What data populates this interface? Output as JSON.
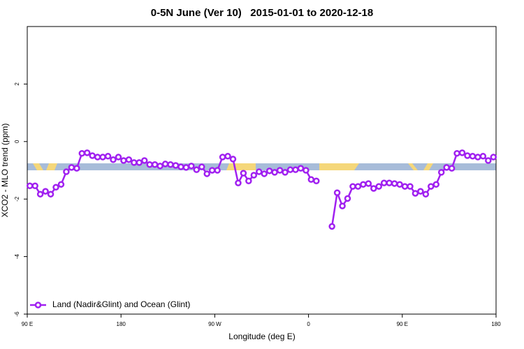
{
  "chart_data": {
    "type": "line",
    "title": "0-5N June (Ver 10)   2015-01-01 to 2020-12-18",
    "x_label": "Longitude (deg E)",
    "y_label": "XCO2 - MLO trend (ppm)",
    "x": [
      92.5,
      97.5,
      102.5,
      107.5,
      112.5,
      117.5,
      122.5,
      127.5,
      132.5,
      137.5,
      142.5,
      147.5,
      152.5,
      157.5,
      162.5,
      167.5,
      172.5,
      177.5,
      182.5,
      187.5,
      192.5,
      197.5,
      202.5,
      207.5,
      212.5,
      217.5,
      222.5,
      227.5,
      232.5,
      237.5,
      242.5,
      247.5,
      252.5,
      257.5,
      262.5,
      267.5,
      272.5,
      277.5,
      282.5,
      287.5,
      292.5,
      297.5,
      302.5,
      307.5,
      312.5,
      317.5,
      322.5,
      327.5,
      332.5,
      337.5,
      342.5,
      347.5,
      352.5,
      357.5,
      362.5,
      367.5,
      372.5,
      377.5,
      382.5,
      387.5,
      392.5,
      397.5,
      402.5,
      407.5,
      412.5,
      417.5,
      422.5,
      427.5,
      432.5,
      437.5,
      442.5,
      447.5,
      452.5,
      457.5,
      462.5,
      467.5,
      472.5,
      477.5,
      482.5,
      487.5,
      492.5,
      497.5,
      502.5,
      507.5,
      512.5,
      517.5,
      522.5,
      527.5,
      532.5,
      537.5
    ],
    "series": [
      {
        "name": "Land (Nadir&Glint) and Ocean (Glint)",
        "color": "#a020f0",
        "values": [
          -1.54,
          -1.54,
          -1.83,
          -1.73,
          -1.83,
          -1.59,
          -1.49,
          -1.05,
          -0.9,
          -0.93,
          -0.41,
          -0.39,
          -0.49,
          -0.54,
          -0.54,
          -0.51,
          -0.63,
          -0.54,
          -0.66,
          -0.63,
          -0.73,
          -0.73,
          -0.66,
          -0.8,
          -0.8,
          -0.85,
          -0.78,
          -0.8,
          -0.83,
          -0.88,
          -0.9,
          -0.85,
          -0.98,
          -0.88,
          -1.12,
          -1.0,
          -1.0,
          -0.54,
          -0.51,
          -0.61,
          -1.44,
          -1.1,
          -1.37,
          -1.17,
          -1.05,
          -1.12,
          -1.02,
          -1.07,
          -1.0,
          -1.07,
          -0.98,
          -0.98,
          -0.93,
          -1.0,
          -1.32,
          -1.37,
          null,
          null,
          -2.95,
          -1.78,
          -2.24,
          -1.98,
          -1.56,
          -1.56,
          -1.49,
          -1.46,
          -1.63,
          -1.56,
          -1.44,
          -1.44,
          -1.46,
          -1.49,
          -1.56,
          -1.56,
          -1.8,
          -1.73,
          -1.83,
          -1.56,
          -1.49,
          -1.07,
          -0.9,
          -0.93,
          -0.41,
          -0.39,
          -0.49,
          -0.51,
          -0.54,
          -0.51,
          -0.66,
          -0.54
        ]
      }
    ],
    "xlim": [
      90,
      540
    ],
    "xticks": [
      {
        "value": 90,
        "label": "90 E"
      },
      180,
      {
        "value": 270,
        "label": "90 W"
      },
      {
        "value": 360,
        "label": "0"
      },
      {
        "value": 450,
        "label": "90 E"
      },
      {
        "value": 540,
        "label": "180"
      }
    ],
    "ylim": [
      -6,
      4
    ],
    "yticks": [
      -6,
      -4,
      -2,
      0,
      2
    ],
    "legend": "bottom-left"
  }
}
